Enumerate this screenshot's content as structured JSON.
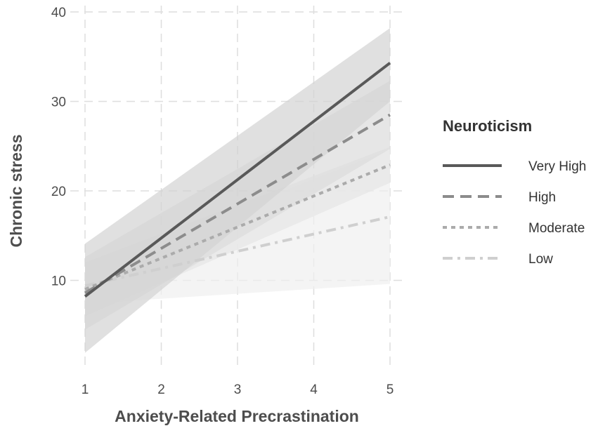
{
  "chart_data": {
    "type": "line",
    "xlabel": "Anxiety-Related Precrastination",
    "ylabel": "Chronic stress",
    "xlim": [
      1,
      5
    ],
    "ylim": [
      0,
      40
    ],
    "xticks": [
      1,
      2,
      3,
      4,
      5
    ],
    "yticks": [
      10,
      20,
      30,
      40
    ],
    "grid": true,
    "legend": {
      "title": "Neuroticism",
      "placement": "right"
    },
    "series": [
      {
        "name": "Very High",
        "x": [
          1,
          5
        ],
        "y": [
          8.2,
          34.3
        ],
        "ci_lower": [
          1.9,
          30.0
        ],
        "ci_upper": [
          14.1,
          38.2
        ],
        "color": "#595959",
        "band_color": "#d3d3d3",
        "dash": "solid"
      },
      {
        "name": "High",
        "x": [
          1,
          5
        ],
        "y": [
          8.6,
          28.5
        ],
        "ci_lower": [
          4.5,
          24.7
        ],
        "ci_upper": [
          12.6,
          32.3
        ],
        "color": "#8c8c8c",
        "band_color": "#dcdcdc",
        "dash": "long-dash"
      },
      {
        "name": "Moderate",
        "x": [
          1,
          5
        ],
        "y": [
          9.0,
          22.9
        ],
        "ci_lower": [
          6.0,
          20.9
        ],
        "ci_upper": [
          12.0,
          24.9
        ],
        "color": "#ababab",
        "band_color": "#e6e6e6",
        "dash": "dotted"
      },
      {
        "name": "Low",
        "x": [
          1,
          5
        ],
        "y": [
          9.4,
          17.1
        ],
        "ci_lower": [
          7.4,
          9.6
        ],
        "ci_upper": [
          11.4,
          24.6
        ],
        "color": "#cfcfcf",
        "band_color": "#efefef",
        "dash": "dash-dot"
      }
    ]
  }
}
